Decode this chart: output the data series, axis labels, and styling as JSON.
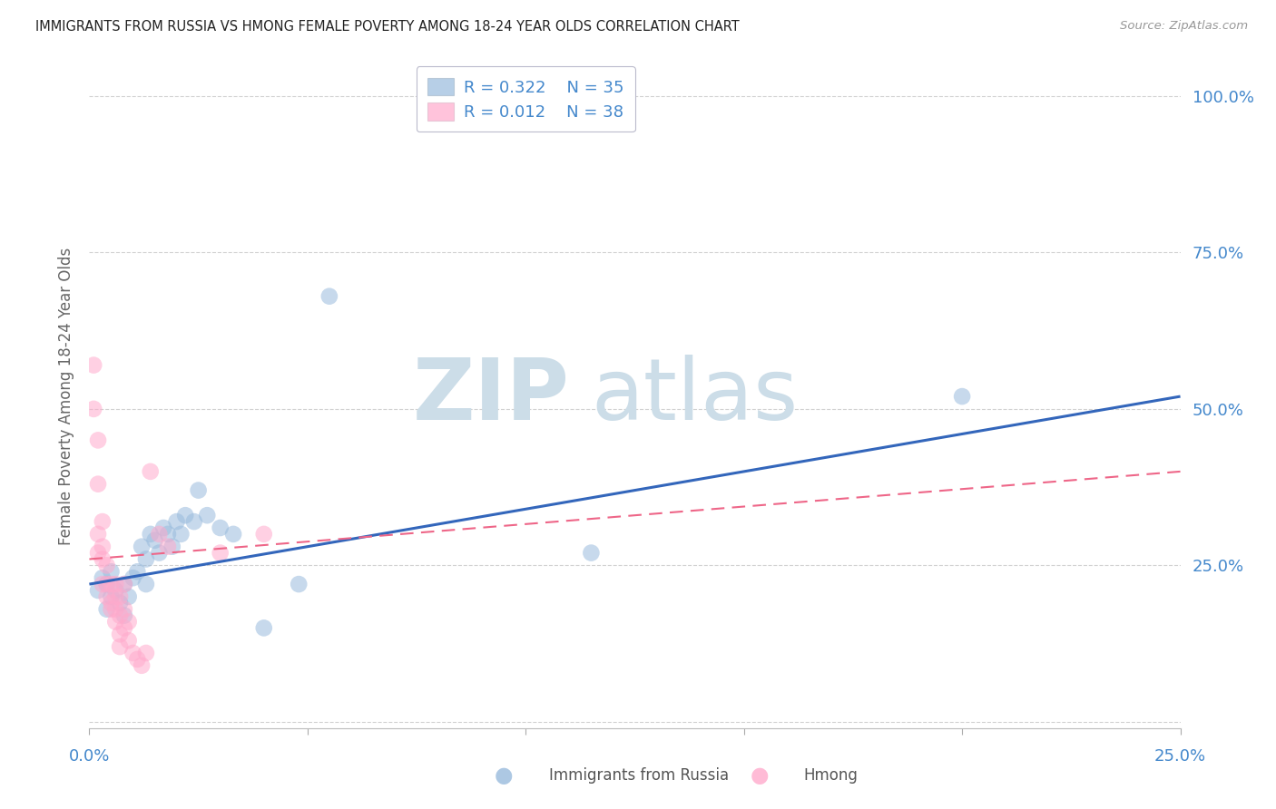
{
  "title": "IMMIGRANTS FROM RUSSIA VS HMONG FEMALE POVERTY AMONG 18-24 YEAR OLDS CORRELATION CHART",
  "source": "Source: ZipAtlas.com",
  "ylabel": "Female Poverty Among 18-24 Year Olds",
  "x_lim": [
    0.0,
    0.25
  ],
  "y_lim": [
    -0.01,
    1.05
  ],
  "legend_russia_R": "0.322",
  "legend_russia_N": "35",
  "legend_hmong_R": "0.012",
  "legend_hmong_N": "38",
  "russia_color": "#99BBDD",
  "hmong_color": "#FFAACC",
  "russia_line_color": "#3366BB",
  "hmong_line_color": "#EE6688",
  "russia_scatter_x": [
    0.002,
    0.003,
    0.004,
    0.004,
    0.005,
    0.005,
    0.006,
    0.007,
    0.008,
    0.008,
    0.009,
    0.01,
    0.011,
    0.012,
    0.013,
    0.013,
    0.014,
    0.015,
    0.016,
    0.017,
    0.018,
    0.019,
    0.02,
    0.021,
    0.022,
    0.024,
    0.025,
    0.027,
    0.03,
    0.033,
    0.04,
    0.048,
    0.055,
    0.115,
    0.2
  ],
  "russia_scatter_y": [
    0.21,
    0.23,
    0.22,
    0.18,
    0.2,
    0.24,
    0.21,
    0.19,
    0.17,
    0.22,
    0.2,
    0.23,
    0.24,
    0.28,
    0.26,
    0.22,
    0.3,
    0.29,
    0.27,
    0.31,
    0.3,
    0.28,
    0.32,
    0.3,
    0.33,
    0.32,
    0.37,
    0.33,
    0.31,
    0.3,
    0.15,
    0.22,
    0.68,
    0.27,
    0.52
  ],
  "hmong_scatter_x": [
    0.001,
    0.001,
    0.002,
    0.002,
    0.002,
    0.002,
    0.003,
    0.003,
    0.003,
    0.003,
    0.004,
    0.004,
    0.004,
    0.005,
    0.005,
    0.005,
    0.006,
    0.006,
    0.006,
    0.006,
    0.007,
    0.007,
    0.007,
    0.007,
    0.008,
    0.008,
    0.008,
    0.009,
    0.009,
    0.01,
    0.011,
    0.012,
    0.013,
    0.014,
    0.016,
    0.018,
    0.03,
    0.04
  ],
  "hmong_scatter_y": [
    0.57,
    0.5,
    0.45,
    0.38,
    0.3,
    0.27,
    0.32,
    0.28,
    0.26,
    0.22,
    0.25,
    0.22,
    0.2,
    0.22,
    0.19,
    0.18,
    0.22,
    0.2,
    0.18,
    0.16,
    0.2,
    0.17,
    0.14,
    0.12,
    0.22,
    0.18,
    0.15,
    0.16,
    0.13,
    0.11,
    0.1,
    0.09,
    0.11,
    0.4,
    0.3,
    0.28,
    0.27,
    0.3
  ],
  "russia_line_x": [
    0.0,
    0.25
  ],
  "russia_line_y": [
    0.22,
    0.52
  ],
  "hmong_line_x": [
    0.0,
    0.25
  ],
  "hmong_line_y": [
    0.26,
    0.4
  ],
  "background_color": "#FFFFFF",
  "grid_color": "#CCCCCC",
  "tick_label_color": "#4488CC",
  "title_color": "#222222",
  "ylabel_color": "#666666",
  "source_color": "#999999"
}
